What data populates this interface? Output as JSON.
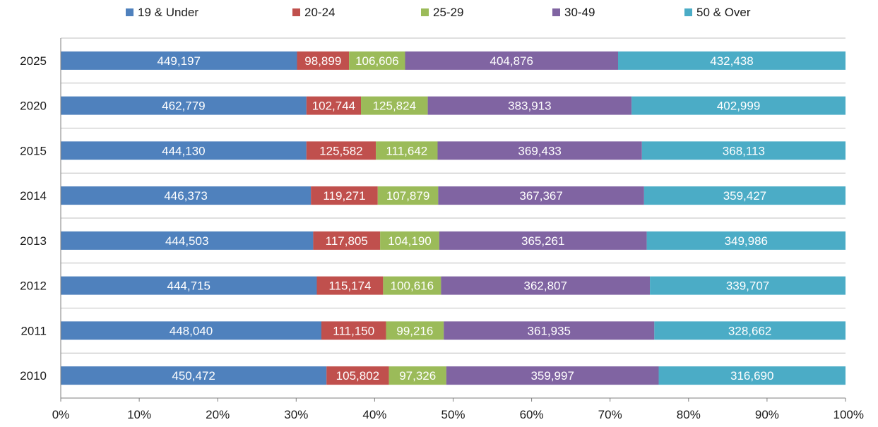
{
  "chart_data": {
    "type": "bar",
    "orientation": "horizontal",
    "stacking": "percent",
    "categories": [
      "2025",
      "2020",
      "2015",
      "2014",
      "2013",
      "2012",
      "2011",
      "2010"
    ],
    "series": [
      {
        "name": "19 & Under",
        "color": "#4f81bd",
        "values": [
          449197,
          462779,
          444130,
          446373,
          444503,
          444715,
          448040,
          450472
        ],
        "labels": [
          "449,197",
          "462,779",
          "444,130",
          "446,373",
          "444,503",
          "444,715",
          "448,040",
          "450,472"
        ]
      },
      {
        "name": "20-24",
        "color": "#c0504d",
        "values": [
          98899,
          102744,
          125582,
          119271,
          117805,
          115174,
          111150,
          105802
        ],
        "labels": [
          "98,899",
          "102,744",
          "125,582",
          "119,271",
          "117,805",
          "115,174",
          "111,150",
          "105,802"
        ]
      },
      {
        "name": "25-29",
        "color": "#9bbb59",
        "values": [
          106606,
          125824,
          111642,
          107879,
          104190,
          100616,
          99216,
          97326
        ],
        "labels": [
          "106,606",
          "125,824",
          "111,642",
          "107,879",
          "104,190",
          "100,616",
          "99,216",
          "97,326"
        ]
      },
      {
        "name": "30-49",
        "color": "#8064a2",
        "values": [
          404876,
          383913,
          369433,
          367367,
          365261,
          362807,
          361935,
          359997
        ],
        "labels": [
          "404,876",
          "383,913",
          "369,433",
          "367,367",
          "365,261",
          "362,807",
          "361,935",
          "359,997"
        ]
      },
      {
        "name": "50 & Over",
        "color": "#4bacc6",
        "values": [
          432438,
          402999,
          368113,
          359427,
          349986,
          339707,
          328662,
          316690
        ],
        "labels": [
          "432,438",
          "402,999",
          "368,113",
          "359,427",
          "349,986",
          "339,707",
          "328,662",
          "316,690"
        ]
      }
    ],
    "x_ticks": [
      "0%",
      "10%",
      "20%",
      "30%",
      "40%",
      "50%",
      "60%",
      "70%",
      "80%",
      "90%",
      "100%"
    ],
    "xlim": [
      0,
      100
    ],
    "grid": "horizontal separators",
    "legend": "top"
  }
}
